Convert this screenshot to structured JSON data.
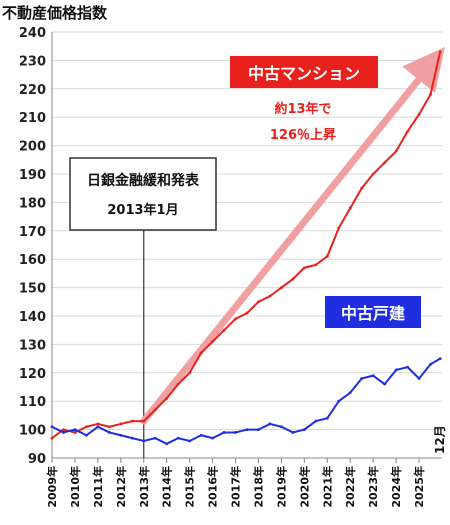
{
  "chart_data": {
    "type": "line",
    "ylabel": "不動産価格指数",
    "ylim": [
      90,
      240
    ],
    "yticks": [
      90,
      100,
      110,
      120,
      130,
      140,
      150,
      160,
      170,
      180,
      190,
      200,
      210,
      220,
      230,
      240
    ],
    "xrange": [
      2009.0,
      2026.0
    ],
    "xticks": [
      "2009年",
      "2010年",
      "2011年",
      "2012年",
      "2013年",
      "2014年",
      "2015年",
      "2016年",
      "2017年",
      "2018年",
      "2019年",
      "2020年",
      "2021年",
      "2022年",
      "2023年",
      "2024年",
      "2025年"
    ],
    "end_label": "12月",
    "grid": true,
    "series": [
      {
        "name": "中古マンション",
        "color": "#e8211c",
        "x": [
          2009.0,
          2009.5,
          2010.0,
          2010.5,
          2011.0,
          2011.5,
          2012.0,
          2012.5,
          2013.0,
          2013.5,
          2014.0,
          2014.5,
          2015.0,
          2015.5,
          2016.0,
          2016.5,
          2017.0,
          2017.5,
          2018.0,
          2018.5,
          2019.0,
          2019.5,
          2020.0,
          2020.5,
          2021.0,
          2021.5,
          2022.0,
          2022.5,
          2023.0,
          2023.5,
          2024.0,
          2024.5,
          2025.0,
          2025.5,
          2025.92
        ],
        "values": [
          97,
          100,
          99,
          101,
          102,
          101,
          102,
          103,
          103,
          107,
          111,
          116,
          120,
          127,
          131,
          135,
          139,
          141,
          145,
          147,
          150,
          153,
          157,
          158,
          161,
          171,
          178,
          185,
          190,
          194,
          198,
          205,
          211,
          218,
          233
        ]
      },
      {
        "name": "中古戸建",
        "color": "#1f2ee0",
        "x": [
          2009.0,
          2009.5,
          2010.0,
          2010.5,
          2011.0,
          2011.5,
          2012.0,
          2012.5,
          2013.0,
          2013.5,
          2014.0,
          2014.5,
          2015.0,
          2015.5,
          2016.0,
          2016.5,
          2017.0,
          2017.5,
          2018.0,
          2018.5,
          2019.0,
          2019.5,
          2020.0,
          2020.5,
          2021.0,
          2021.5,
          2022.0,
          2022.5,
          2023.0,
          2023.5,
          2024.0,
          2024.5,
          2025.0,
          2025.5,
          2025.92
        ],
        "values": [
          101,
          99,
          100,
          98,
          101,
          99,
          98,
          97,
          96,
          97,
          95,
          97,
          96,
          98,
          97,
          99,
          99,
          100,
          100,
          102,
          101,
          99,
          100,
          103,
          104,
          110,
          113,
          118,
          119,
          116,
          121,
          122,
          118,
          123,
          125
        ]
      }
    ],
    "annotations": {
      "mansion_label": "中古マンション",
      "mansion_note_1": "約13年で",
      "mansion_note_2": "126％上昇",
      "house_label": "中古戸建",
      "event_title": "日銀金融緩和発表",
      "event_date": "2013年1月",
      "event_x": 2013.0
    }
  }
}
